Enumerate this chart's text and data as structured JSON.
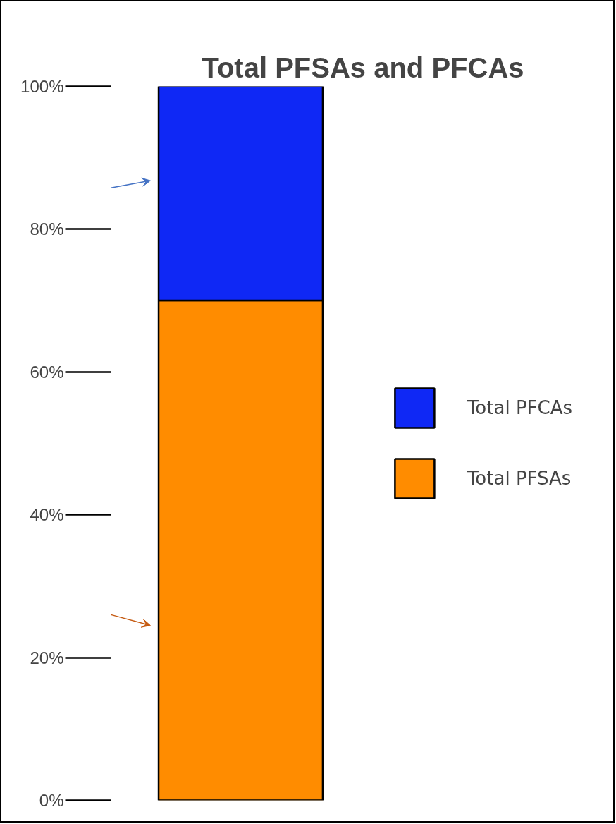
{
  "chart_data": {
    "type": "bar",
    "title": "Total PFSAs and PFCAs",
    "stacked": true,
    "categories": [
      null
    ],
    "series": [
      {
        "name": "Total PFSAs",
        "color": "#ff8c00",
        "values": [
          70
        ]
      },
      {
        "name": "Total PFCAs",
        "color": "#0f28f5",
        "values": [
          30
        ]
      }
    ],
    "ylim": [
      0,
      100
    ],
    "yticks": [
      {
        "value": 0,
        "label": "0%"
      },
      {
        "value": 20,
        "label": "20%"
      },
      {
        "value": 40,
        "label": "40%"
      },
      {
        "value": 60,
        "label": "60%"
      },
      {
        "value": 80,
        "label": "80%"
      },
      {
        "value": 100,
        "label": "100%"
      }
    ],
    "legend": "right",
    "grid": false
  }
}
